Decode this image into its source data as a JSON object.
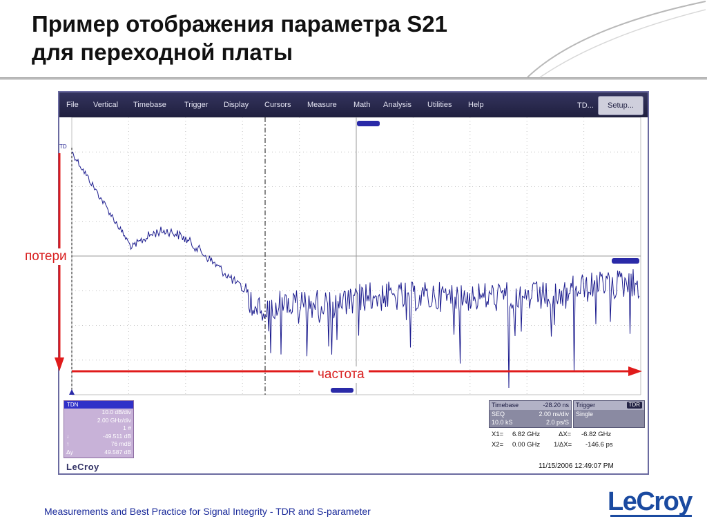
{
  "slide": {
    "title_line1": "Пример отображения параметра S21",
    "title_line2": "для переходной платы",
    "footer": "Measurements and Best Practice for Signal Integrity - TDR and S-parameter",
    "brand": "LeCroy",
    "label_loss": "потери",
    "label_frequency": "частота",
    "accent_color": "#e01b1b"
  },
  "menu": {
    "items": [
      "File",
      "Vertical",
      "Timebase",
      "Trigger",
      "Display",
      "Cursors",
      "Measure",
      "Math",
      "Analysis",
      "Utilities",
      "Help"
    ],
    "right_label": "TD...",
    "setup_button": "Setup..."
  },
  "plot": {
    "trace_marker": "TD",
    "trace_color": "#1c1c8e",
    "grid_color": "#c0c0c0"
  },
  "trace_panel": {
    "header": "TDN",
    "rows": [
      {
        "sym": "",
        "val": "10.0 dB/div"
      },
      {
        "sym": "",
        "val": "2.00 GHz/div"
      },
      {
        "sym": "",
        "val": "1 #"
      },
      {
        "sym": "↓",
        "val": "-49.511 dB"
      },
      {
        "sym": "↑",
        "val": "76 mdB"
      },
      {
        "sym": "Δy",
        "val": "49.587 dB"
      }
    ],
    "logo": "LeCroy"
  },
  "timebase": {
    "header_label": "Timebase",
    "header_value": "-28.20 ns",
    "row1_label": "SEQ",
    "row1_value": "2.00 ns/div",
    "row2_label": "10.0 kS",
    "row2_value": "2.0 ps/S"
  },
  "trigger": {
    "header_label": "Trigger",
    "badge": "TDR",
    "mode": "Single"
  },
  "cursors": {
    "x1_label": "X1=",
    "x1_value": "6.82 GHz",
    "dx_label": "ΔX=",
    "dx_value": "-6.82 GHz",
    "x2_label": "X2=",
    "x2_value": "0.00 GHz",
    "inv_dx_label": "1/ΔX=",
    "inv_dx_value": "-146.6 ps"
  },
  "timestamp": "11/15/2006 12:49:07 PM"
}
